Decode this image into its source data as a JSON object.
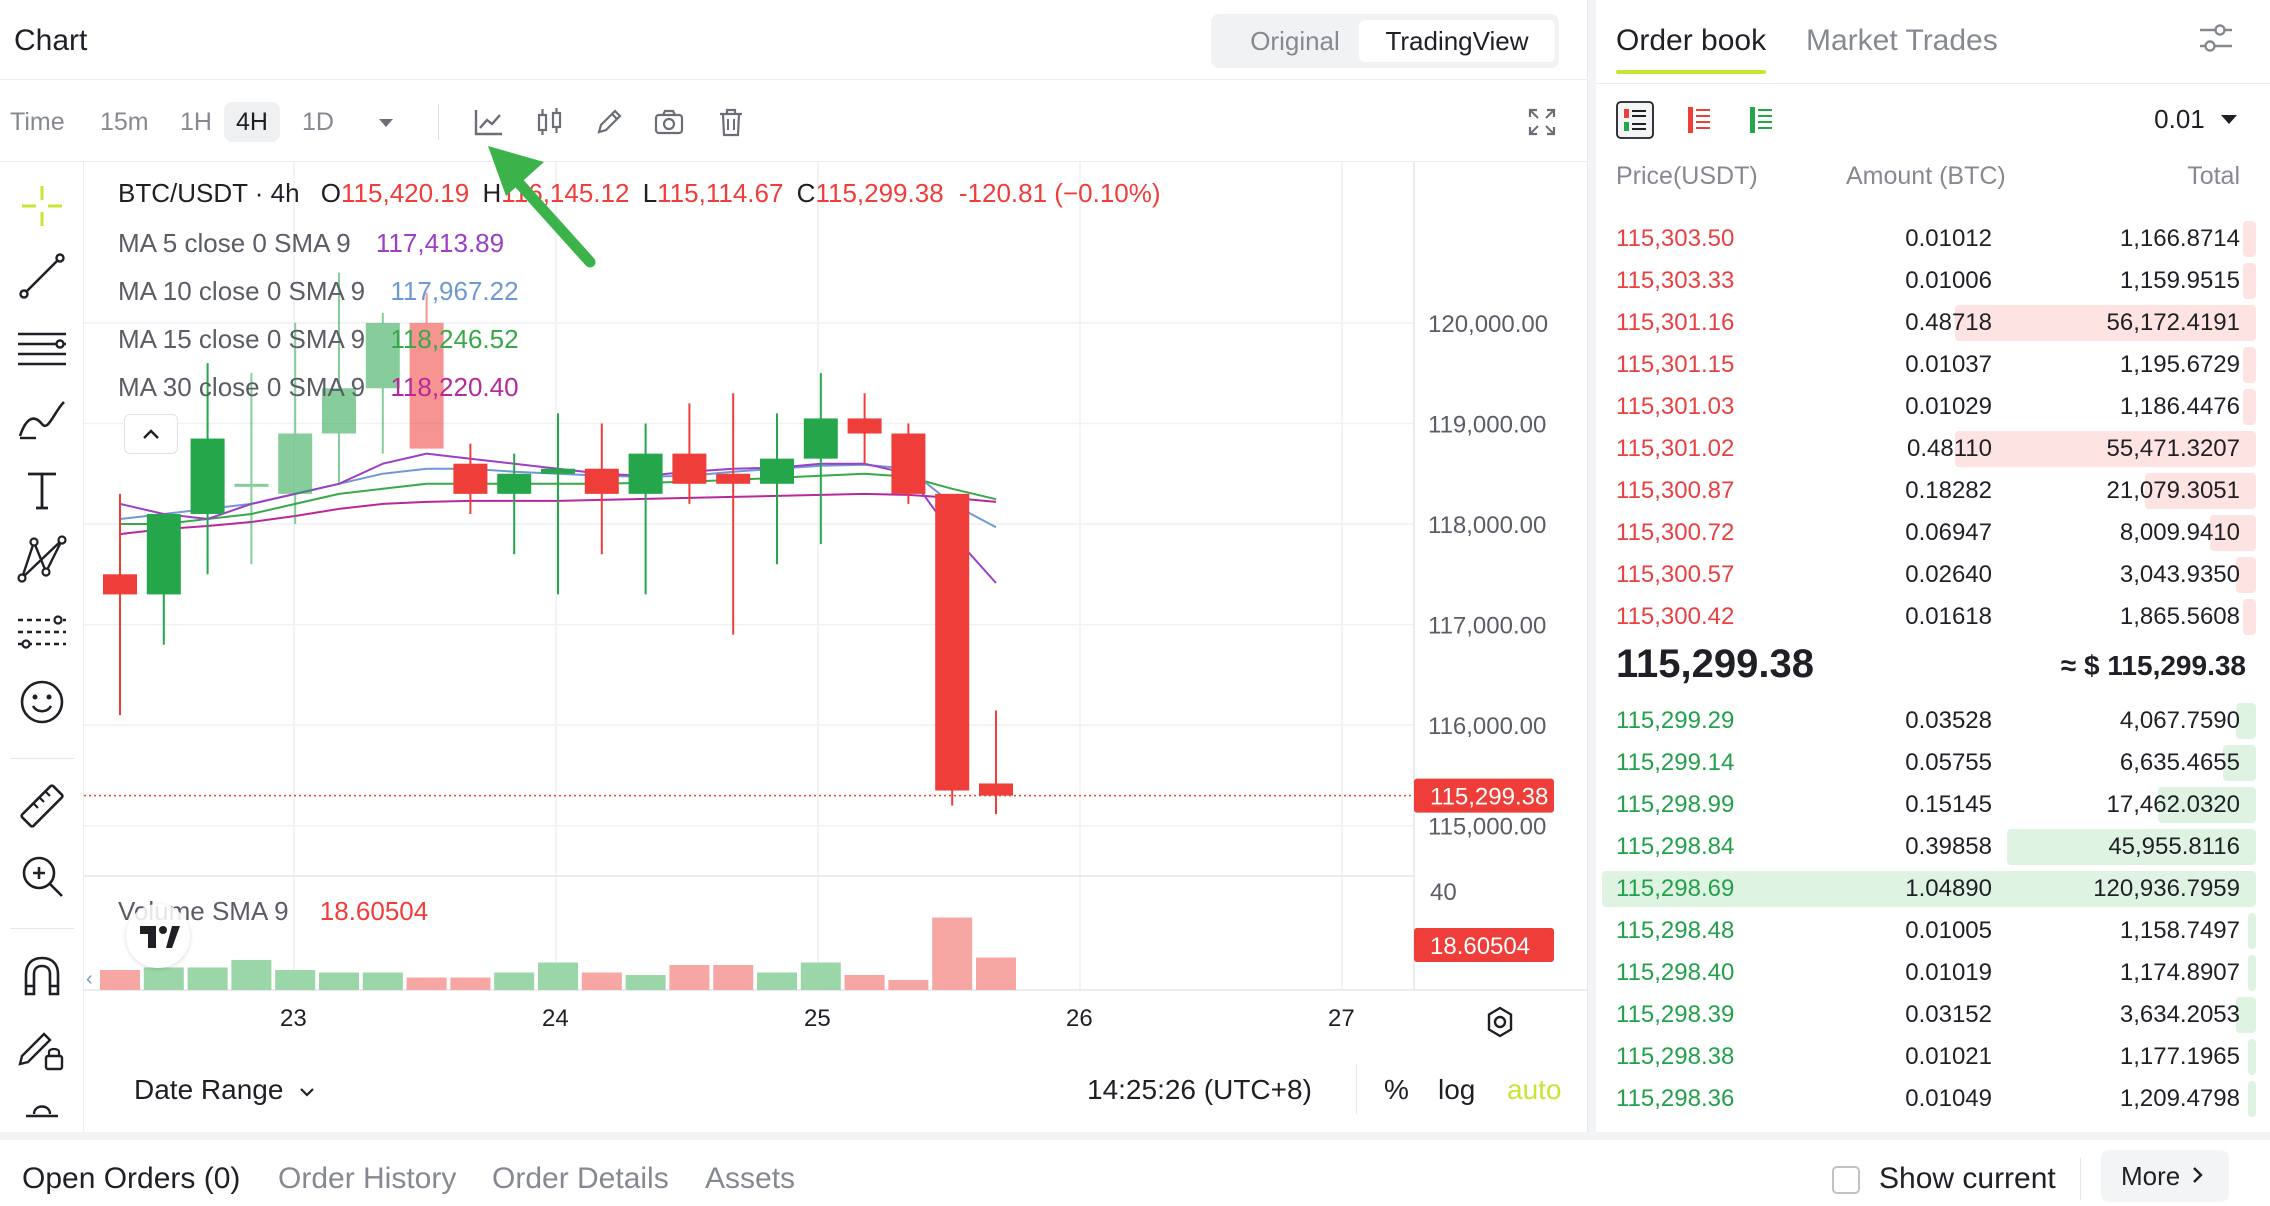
{
  "chart_header": {
    "title": "Chart",
    "view_original": "Original",
    "view_tradingview": "TradingView"
  },
  "toolbar": {
    "time_label": "Time",
    "intervals": [
      "15m",
      "1H",
      "4H",
      "1D"
    ],
    "active_interval": "4H"
  },
  "legend": {
    "pair": "BTC/USDT · 4h",
    "o_label": "O",
    "o_value": "115,420.19",
    "h_label": "H",
    "h_value": "116,145.12",
    "l_label": "L",
    "l_value": "115,114.67",
    "c_label": "C",
    "c_value": "115,299.38",
    "change": "-120.81 (−0.10%)",
    "ma5_label": "MA 5 close 0 SMA 9",
    "ma5_value": "117,413.89",
    "ma10_label": "MA 10 close 0 SMA 9",
    "ma10_value": "117,967.22",
    "ma15_label": "MA 15 close 0 SMA 9",
    "ma15_value": "118,246.52",
    "ma30_label": "MA 30 close 0 SMA 9",
    "ma30_value": "118,220.40",
    "volume_label": "Volume SMA 9",
    "volume_value": "18.60504"
  },
  "colors": {
    "up": "#26a64b",
    "down": "#ef3e3a",
    "ma5": "#9c3fc7",
    "ma10": "#6f99d3",
    "ma15": "#39a84a",
    "ma30": "#b8289c",
    "accent": "#c8e534"
  },
  "chart_data": {
    "type": "candlestick",
    "price_axis_ticks": [
      "120,000.00",
      "119,000.00",
      "118,000.00",
      "117,000.00",
      "116,000.00",
      "115,000.00"
    ],
    "price_ticks_values": [
      120000,
      119000,
      118000,
      117000,
      116000,
      115000
    ],
    "ylim": [
      114500,
      121600
    ],
    "last_price_label": "115,299.38",
    "volume_axis_tick": "40",
    "volume_last_label": "18.60504",
    "x_tick_labels": [
      "23",
      "24",
      "25",
      "26",
      "27"
    ],
    "candles": [
      {
        "o": 117500,
        "h": 118300,
        "l": 116100,
        "c": 117300
      },
      {
        "o": 117300,
        "h": 118100,
        "l": 116800,
        "c": 118100
      },
      {
        "o": 118100,
        "h": 119600,
        "l": 117500,
        "c": 118850
      },
      {
        "o": 118400,
        "h": 119500,
        "l": 117600,
        "c": 118400
      },
      {
        "o": 118300,
        "h": 120000,
        "l": 118000,
        "c": 118900
      },
      {
        "o": 118900,
        "h": 120500,
        "l": 118400,
        "c": 119350
      },
      {
        "o": 119350,
        "h": 120100,
        "l": 118700,
        "c": 120000
      },
      {
        "o": 120000,
        "h": 120300,
        "l": 118750,
        "c": 118750
      },
      {
        "o": 118600,
        "h": 118800,
        "l": 118100,
        "c": 118300
      },
      {
        "o": 118300,
        "h": 118700,
        "l": 117700,
        "c": 118500
      },
      {
        "o": 118500,
        "h": 119100,
        "l": 117300,
        "c": 118550
      },
      {
        "o": 118550,
        "h": 119000,
        "l": 117700,
        "c": 118300
      },
      {
        "o": 118300,
        "h": 119000,
        "l": 117300,
        "c": 118700
      },
      {
        "o": 118700,
        "h": 119200,
        "l": 118200,
        "c": 118400
      },
      {
        "o": 118500,
        "h": 119300,
        "l": 116900,
        "c": 118400
      },
      {
        "o": 118400,
        "h": 119100,
        "l": 117600,
        "c": 118650
      },
      {
        "o": 118650,
        "h": 119500,
        "l": 117800,
        "c": 119050
      },
      {
        "o": 119050,
        "h": 119300,
        "l": 118600,
        "c": 118900
      },
      {
        "o": 118900,
        "h": 119000,
        "l": 118200,
        "c": 118300
      },
      {
        "o": 118300,
        "h": 118300,
        "l": 115200,
        "c": 115350
      },
      {
        "o": 115420.19,
        "h": 116145.12,
        "l": 115114.67,
        "c": 115299.38
      }
    ],
    "volume": [
      8,
      9,
      9,
      12,
      8,
      7,
      7,
      5,
      5,
      7,
      11,
      7,
      6,
      10,
      10,
      7,
      11,
      6,
      4,
      29,
      13
    ],
    "ma5": [
      118200,
      118100,
      118050,
      118200,
      118300,
      118400,
      118600,
      118700,
      118650,
      118600,
      118550,
      118500,
      118480,
      118520,
      118550,
      118560,
      118600,
      118600,
      118500,
      117900,
      117413.89
    ],
    "ma10": [
      118050,
      118100,
      118150,
      118200,
      118300,
      118400,
      118500,
      118550,
      118550,
      118520,
      118500,
      118480,
      118470,
      118480,
      118520,
      118550,
      118580,
      118590,
      118550,
      118200,
      117967.22
    ],
    "ma15": [
      118000,
      118000,
      118050,
      118100,
      118200,
      118300,
      118350,
      118400,
      118400,
      118400,
      118400,
      118400,
      118410,
      118420,
      118440,
      118460,
      118480,
      118500,
      118470,
      118350,
      118246.52
    ],
    "ma30": [
      117900,
      117950,
      117980,
      118020,
      118080,
      118150,
      118200,
      118220,
      118230,
      118230,
      118230,
      118240,
      118250,
      118260,
      118270,
      118280,
      118290,
      118300,
      118290,
      118260,
      118220.4
    ]
  },
  "chart_footer": {
    "date_range": "Date Range",
    "time": "14:25:26 (UTC+8)",
    "percent": "%",
    "log": "log",
    "auto": "auto"
  },
  "orderbook": {
    "tab_active": "Order book",
    "tab_other": "Market Trades",
    "precision": "0.01",
    "col_price": "Price(USDT)",
    "col_amount": "Amount (BTC)",
    "col_total": "Total",
    "asks": [
      {
        "price": "115,303.50",
        "amount": "0.01012",
        "total": "1,166.8714",
        "depth": 0.02
      },
      {
        "price": "115,303.33",
        "amount": "0.01006",
        "total": "1,159.9515",
        "depth": 0.02
      },
      {
        "price": "115,301.16",
        "amount": "0.48718",
        "total": "56,172.4191",
        "depth": 0.46
      },
      {
        "price": "115,301.15",
        "amount": "0.01037",
        "total": "1,195.6729",
        "depth": 0.02
      },
      {
        "price": "115,301.03",
        "amount": "0.01029",
        "total": "1,186.4476",
        "depth": 0.02
      },
      {
        "price": "115,301.02",
        "amount": "0.48110",
        "total": "55,471.3207",
        "depth": 0.46
      },
      {
        "price": "115,300.87",
        "amount": "0.18282",
        "total": "21,079.3051",
        "depth": 0.17
      },
      {
        "price": "115,300.72",
        "amount": "0.06947",
        "total": "8,009.9410",
        "depth": 0.07
      },
      {
        "price": "115,300.57",
        "amount": "0.02640",
        "total": "3,043.9350",
        "depth": 0.03
      },
      {
        "price": "115,300.42",
        "amount": "0.01618",
        "total": "1,865.5608",
        "depth": 0.02
      }
    ],
    "mid_price": "115,299.38",
    "mid_usd": "≈ $ 115,299.38",
    "bids": [
      {
        "price": "115,299.29",
        "amount": "0.03528",
        "total": "4,067.7590",
        "depth": 0.03
      },
      {
        "price": "115,299.14",
        "amount": "0.05755",
        "total": "6,635.4655",
        "depth": 0.05
      },
      {
        "price": "115,298.99",
        "amount": "0.15145",
        "total": "17,462.0320",
        "depth": 0.15
      },
      {
        "price": "115,298.84",
        "amount": "0.39858",
        "total": "45,955.8116",
        "depth": 0.38
      },
      {
        "price": "115,298.69",
        "amount": "1.04890",
        "total": "120,936.7959",
        "depth": 1.0
      },
      {
        "price": "115,298.48",
        "amount": "0.01005",
        "total": "1,158.7497",
        "depth": 0.01
      },
      {
        "price": "115,298.40",
        "amount": "0.01019",
        "total": "1,174.8907",
        "depth": 0.01
      },
      {
        "price": "115,298.39",
        "amount": "0.03152",
        "total": "3,634.2053",
        "depth": 0.03
      },
      {
        "price": "115,298.38",
        "amount": "0.01021",
        "total": "1,177.1965",
        "depth": 0.01
      },
      {
        "price": "115,298.36",
        "amount": "0.01049",
        "total": "1,209.4798",
        "depth": 0.01
      }
    ]
  },
  "bottom_tabs": {
    "open_orders": "Open Orders (0)",
    "order_history": "Order History",
    "order_details": "Order Details",
    "assets": "Assets",
    "show_current": "Show current",
    "more": "More"
  }
}
